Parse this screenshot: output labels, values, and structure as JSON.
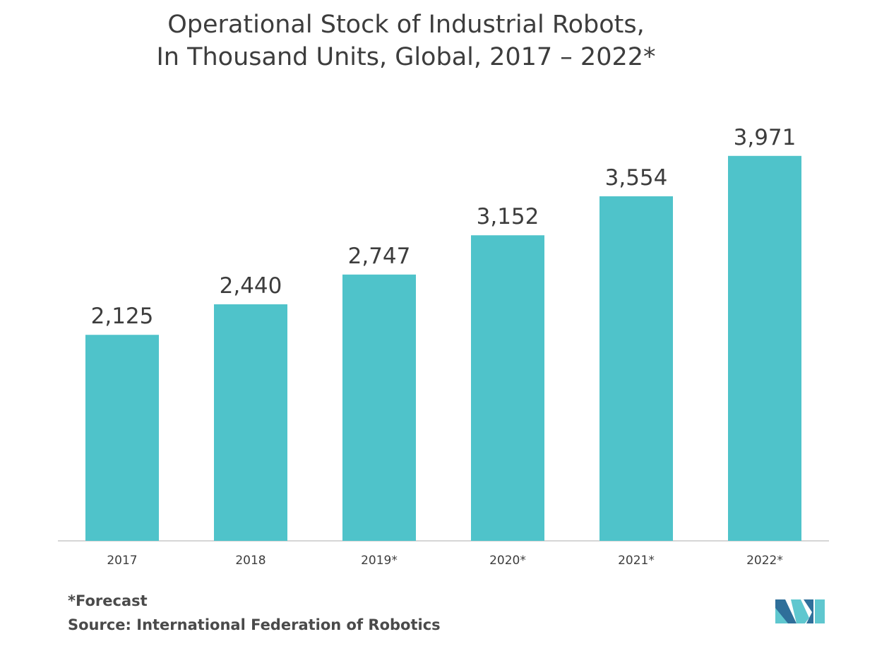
{
  "colors": {
    "bar": "#4fc3ca",
    "axis": "#c8c8c8",
    "text": "#3d3d3d",
    "logo_dark": "#2f6f9a",
    "logo_light": "#5fc7cf"
  },
  "chart_data": {
    "type": "bar",
    "title_line1": "Operational Stock of Industrial Robots,",
    "title_line2": "In Thousand Units, Global, 2017 – 2022*",
    "categories": [
      "2017",
      "2018",
      "2019*",
      "2020*",
      "2021*",
      "2022*"
    ],
    "values": [
      2125,
      2440,
      2747,
      3152,
      3554,
      3971
    ],
    "data_labels": [
      "2,125",
      "2,440",
      "2,747",
      "3,152",
      "3,554",
      "3,971"
    ],
    "xlabel": "",
    "ylabel": "",
    "ylim": [
      0,
      4000
    ],
    "grid": false,
    "legend": "none"
  },
  "footnotes": {
    "forecast": "*Forecast",
    "source": "Source: International Federation of Robotics"
  },
  "logo": {
    "icon": "mordor-intelligence-logo-icon"
  }
}
